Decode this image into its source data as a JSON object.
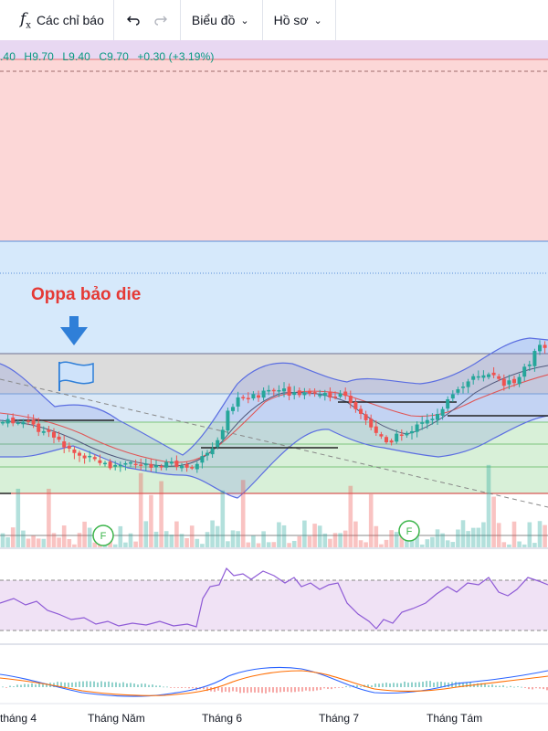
{
  "toolbar": {
    "indicators_label": "Các chỉ báo",
    "chart_label": "Biểu đồ",
    "profile_label": "Hồ sơ",
    "icons": [
      "fx-icon",
      "undo-icon",
      "redo-icon",
      "chevron-down-icon"
    ]
  },
  "legend": {
    "open_fragment": ".40",
    "high": "H9.70",
    "low": "L9.40",
    "close": "C9.70",
    "change": "+0.30 (+3.19%)",
    "color": "#089981"
  },
  "annotation": {
    "text": "Oppa bảo die",
    "color": "#e53935",
    "arrow_color": "#2f7fd8",
    "flag_color": "#2f7fd8"
  },
  "events": [
    "F",
    "F"
  ],
  "x_axis": {
    "labels": [
      "tháng 4",
      "Tháng Năm",
      "Tháng 6",
      "Tháng 7",
      "Tháng Tám"
    ]
  },
  "colors": {
    "up": "#26a69a",
    "down": "#ef5350",
    "bollinger": "#5b6ee1",
    "ma": "#e05555",
    "rsi": "#8e5ad6",
    "macd": "#2962ff",
    "signal": "#ff6d00"
  }
}
